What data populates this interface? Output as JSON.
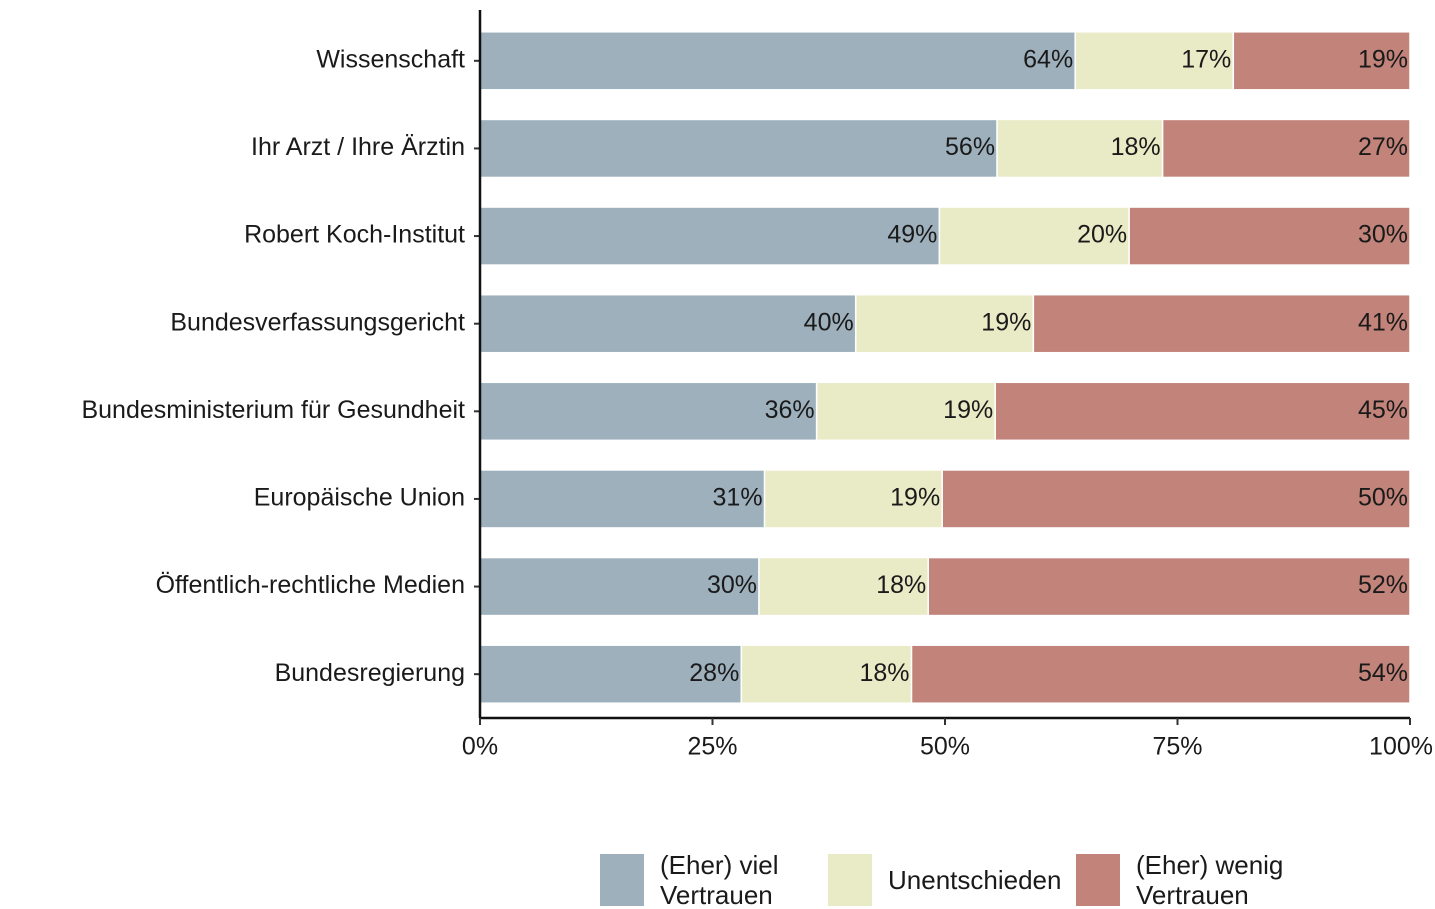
{
  "chart_data": {
    "type": "stacked_barh",
    "categories": [
      "Wissenschaft",
      "Ihr Arzt / Ihre Ärztin",
      "Robert Koch-Institut",
      "Bundesverfassungsgericht",
      "Bundesministerium für Gesundheit",
      "Europäische Union",
      "Öffentlich-rechtliche Medien",
      "Bundesregierung"
    ],
    "series": [
      {
        "name": "(Eher) viel Vertrauen",
        "color": "#9db0bc",
        "values": [
          64,
          55.6,
          49.4,
          40.4,
          36.2,
          30.6,
          30.0,
          28.1
        ],
        "value_labels": [
          "64%",
          "56%",
          "49%",
          "40%",
          "36%",
          "31%",
          "30%",
          "28%"
        ]
      },
      {
        "name": "Unentschieden",
        "color": "#e9eac6",
        "values": [
          17,
          17.8,
          20.4,
          19.1,
          19.2,
          19.1,
          18.2,
          18.3
        ],
        "value_labels": [
          "17%",
          "18%",
          "20%",
          "19%",
          "19%",
          "19%",
          "18%",
          "18%"
        ]
      },
      {
        "name": "(Eher) wenig Vertrauen",
        "color": "#c1837a",
        "values": [
          19,
          26.6,
          30.2,
          40.5,
          44.6,
          50.3,
          51.8,
          53.6
        ],
        "value_labels": [
          "19%",
          "27%",
          "30%",
          "41%",
          "45%",
          "50%",
          "52%",
          "54%"
        ]
      }
    ],
    "xlim": [
      0,
      100
    ],
    "xticks": [
      {
        "value": 0,
        "label": "0%"
      },
      {
        "value": 25,
        "label": "25%"
      },
      {
        "value": 50,
        "label": "50%"
      },
      {
        "value": 75,
        "label": "75%"
      },
      {
        "value": 100,
        "label": "100%"
      }
    ],
    "legend": "bottom"
  }
}
